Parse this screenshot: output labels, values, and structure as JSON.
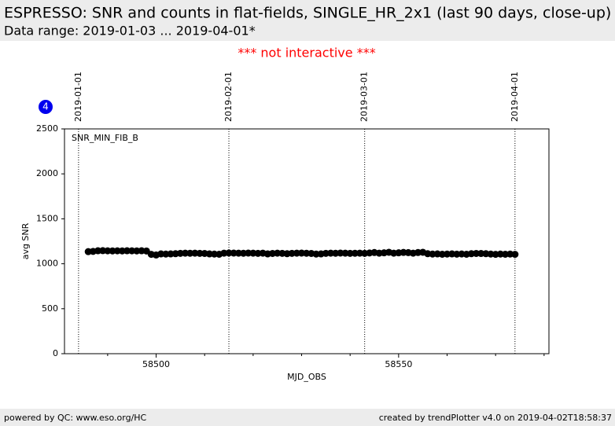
{
  "header": {
    "title": "ESPRESSO: SNR and counts in flat-fields, SINGLE_HR_2x1 (last 90 days, close-up)",
    "subtitle": "Data range: 2019-01-03 ... 2019-04-01*"
  },
  "notice": "*** not interactive ***",
  "badge": "4",
  "chart_data": {
    "type": "scatter",
    "panel_label": "SNR_MIN_FIB_B",
    "y_label": "avg SNR",
    "x_label": "MJD_OBS",
    "color": "#000000",
    "xlim": [
      58481.1,
      58581
    ],
    "ylim": [
      0,
      2500
    ],
    "xticks": [
      58500,
      58550
    ],
    "xminorticks": [
      58490,
      58510,
      58520,
      58530,
      58540,
      58560,
      58570,
      58580
    ],
    "yticks": [
      0,
      500,
      1000,
      1500,
      2000,
      2500
    ],
    "date_markers": [
      {
        "value": 58484,
        "label": "2019-01-01"
      },
      {
        "value": 58515,
        "label": "2019-02-01"
      },
      {
        "value": 58543,
        "label": "2019-03-01"
      },
      {
        "value": 58574,
        "label": "2019-04-01"
      }
    ],
    "x": [
      58486,
      58487,
      58488,
      58489,
      58490,
      58491,
      58492,
      58493,
      58494,
      58495,
      58496,
      58497,
      58498,
      58499,
      58500,
      58501,
      58502,
      58503,
      58504,
      58505,
      58506,
      58507,
      58508,
      58509,
      58510,
      58511,
      58512,
      58513,
      58514,
      58515,
      58516,
      58517,
      58518,
      58519,
      58520,
      58521,
      58522,
      58523,
      58524,
      58525,
      58526,
      58527,
      58528,
      58529,
      58530,
      58531,
      58532,
      58533,
      58534,
      58535,
      58536,
      58537,
      58538,
      58539,
      58540,
      58541,
      58542,
      58543,
      58544,
      58545,
      58546,
      58547,
      58548,
      58549,
      58550,
      58551,
      58552,
      58553,
      58554,
      58555,
      58556,
      58557,
      58558,
      58559,
      58560,
      58561,
      58562,
      58563,
      58564,
      58565,
      58566,
      58567,
      58568,
      58569,
      58570,
      58571,
      58572,
      58573,
      58574
    ],
    "values": [
      1135,
      1138,
      1145,
      1146,
      1144,
      1143,
      1144,
      1143,
      1145,
      1144,
      1143,
      1145,
      1142,
      1105,
      1098,
      1110,
      1108,
      1110,
      1112,
      1116,
      1118,
      1117,
      1118,
      1116,
      1115,
      1110,
      1108,
      1106,
      1118,
      1120,
      1119,
      1118,
      1117,
      1119,
      1118,
      1116,
      1118,
      1110,
      1115,
      1118,
      1116,
      1112,
      1116,
      1118,
      1119,
      1117,
      1115,
      1108,
      1110,
      1116,
      1118,
      1117,
      1119,
      1118,
      1116,
      1117,
      1118,
      1116,
      1120,
      1125,
      1118,
      1122,
      1128,
      1118,
      1122,
      1126,
      1124,
      1118,
      1125,
      1128,
      1112,
      1108,
      1110,
      1106,
      1108,
      1110,
      1107,
      1109,
      1106,
      1112,
      1115,
      1114,
      1112,
      1108,
      1105,
      1108,
      1106,
      1108,
      1105
    ]
  },
  "footer": {
    "left": "powered by QC: www.eso.org/HC",
    "right": "created by trendPlotter v4.0 on 2019-04-02T18:58:37"
  }
}
